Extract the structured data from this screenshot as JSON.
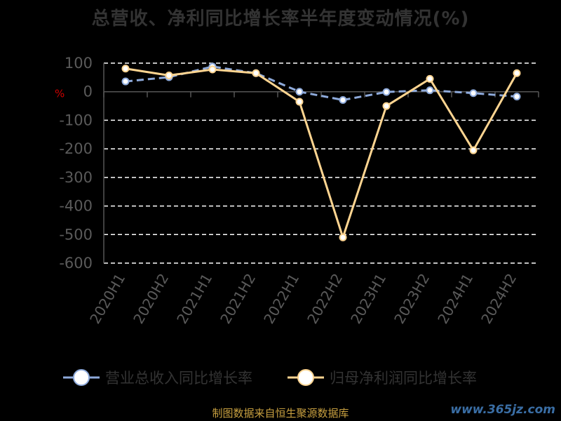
{
  "title": "总营收、净利同比增长率半年度变动情况(%)",
  "unit": "%",
  "source_note": "制图数据来自恒生聚源数据库",
  "watermark": "www.365jz.com",
  "colors": {
    "revenue": "#8eaadb",
    "profit": "#ffd591",
    "grid": "#ffffff",
    "axis": "#555555"
  },
  "chart_data": {
    "type": "line",
    "categories": [
      "2020H1",
      "2020H2",
      "2021H1",
      "2021H2",
      "2022H1",
      "2022H2",
      "2023H1",
      "2023H2",
      "2024H1",
      "2024H2"
    ],
    "ylim": [
      -600,
      100
    ],
    "yticks": [
      100,
      0,
      -100,
      -200,
      -300,
      -400,
      -500,
      -600
    ],
    "grid": true,
    "legend_position": "bottom",
    "series": [
      {
        "name": "营业总收入同比增长率",
        "values": [
          36,
          51,
          88,
          65,
          0,
          -29,
          -1,
          5,
          -5,
          -17
        ]
      },
      {
        "name": "归母净利润同比增长率",
        "values": [
          81,
          57,
          78,
          65,
          -35,
          -510,
          -50,
          45,
          -205,
          65
        ]
      }
    ]
  }
}
